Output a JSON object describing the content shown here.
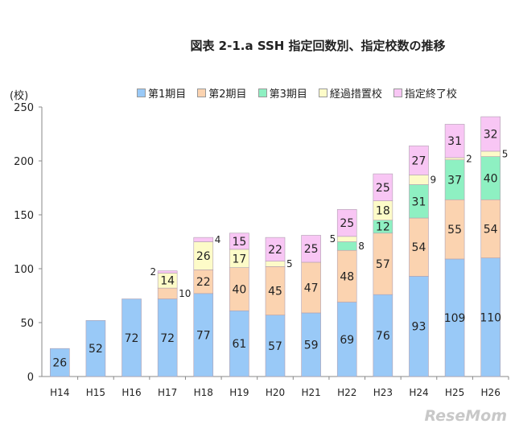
{
  "chart_data": {
    "type": "bar",
    "stacked": true,
    "title": "図表 2-1.a SSH 指定回数別、指定校数の推移",
    "ylabel": "(校)",
    "xlabel": "",
    "ylim": [
      0,
      250
    ],
    "yticks": [
      0,
      50,
      100,
      150,
      200,
      250
    ],
    "grid": false,
    "legend_position": "top",
    "categories": [
      "H14",
      "H15",
      "H16",
      "H17",
      "H18",
      "H19",
      "H20",
      "H21",
      "H22",
      "H23",
      "H24",
      "H25",
      "H26"
    ],
    "series": [
      {
        "name": "第1期目",
        "color": "#99c9f7",
        "values": [
          26,
          52,
          72,
          72,
          77,
          61,
          57,
          59,
          69,
          76,
          93,
          109,
          110
        ]
      },
      {
        "name": "第2期目",
        "color": "#fbd3b0",
        "values": [
          0,
          0,
          0,
          10,
          22,
          40,
          45,
          47,
          48,
          57,
          54,
          55,
          54
        ]
      },
      {
        "name": "第3期目",
        "color": "#8ef0c2",
        "values": [
          0,
          0,
          0,
          0,
          0,
          0,
          0,
          0,
          8,
          12,
          31,
          37,
          40
        ]
      },
      {
        "name": "経過措置校",
        "color": "#fdfbc8",
        "values": [
          0,
          0,
          0,
          14,
          26,
          17,
          5,
          0,
          5,
          18,
          9,
          2,
          5
        ]
      },
      {
        "name": "指定終了校",
        "color": "#f8c6f4",
        "values": [
          0,
          0,
          0,
          2,
          4,
          15,
          22,
          25,
          25,
          25,
          27,
          31,
          32
        ]
      }
    ]
  },
  "watermark": "ReseMom"
}
